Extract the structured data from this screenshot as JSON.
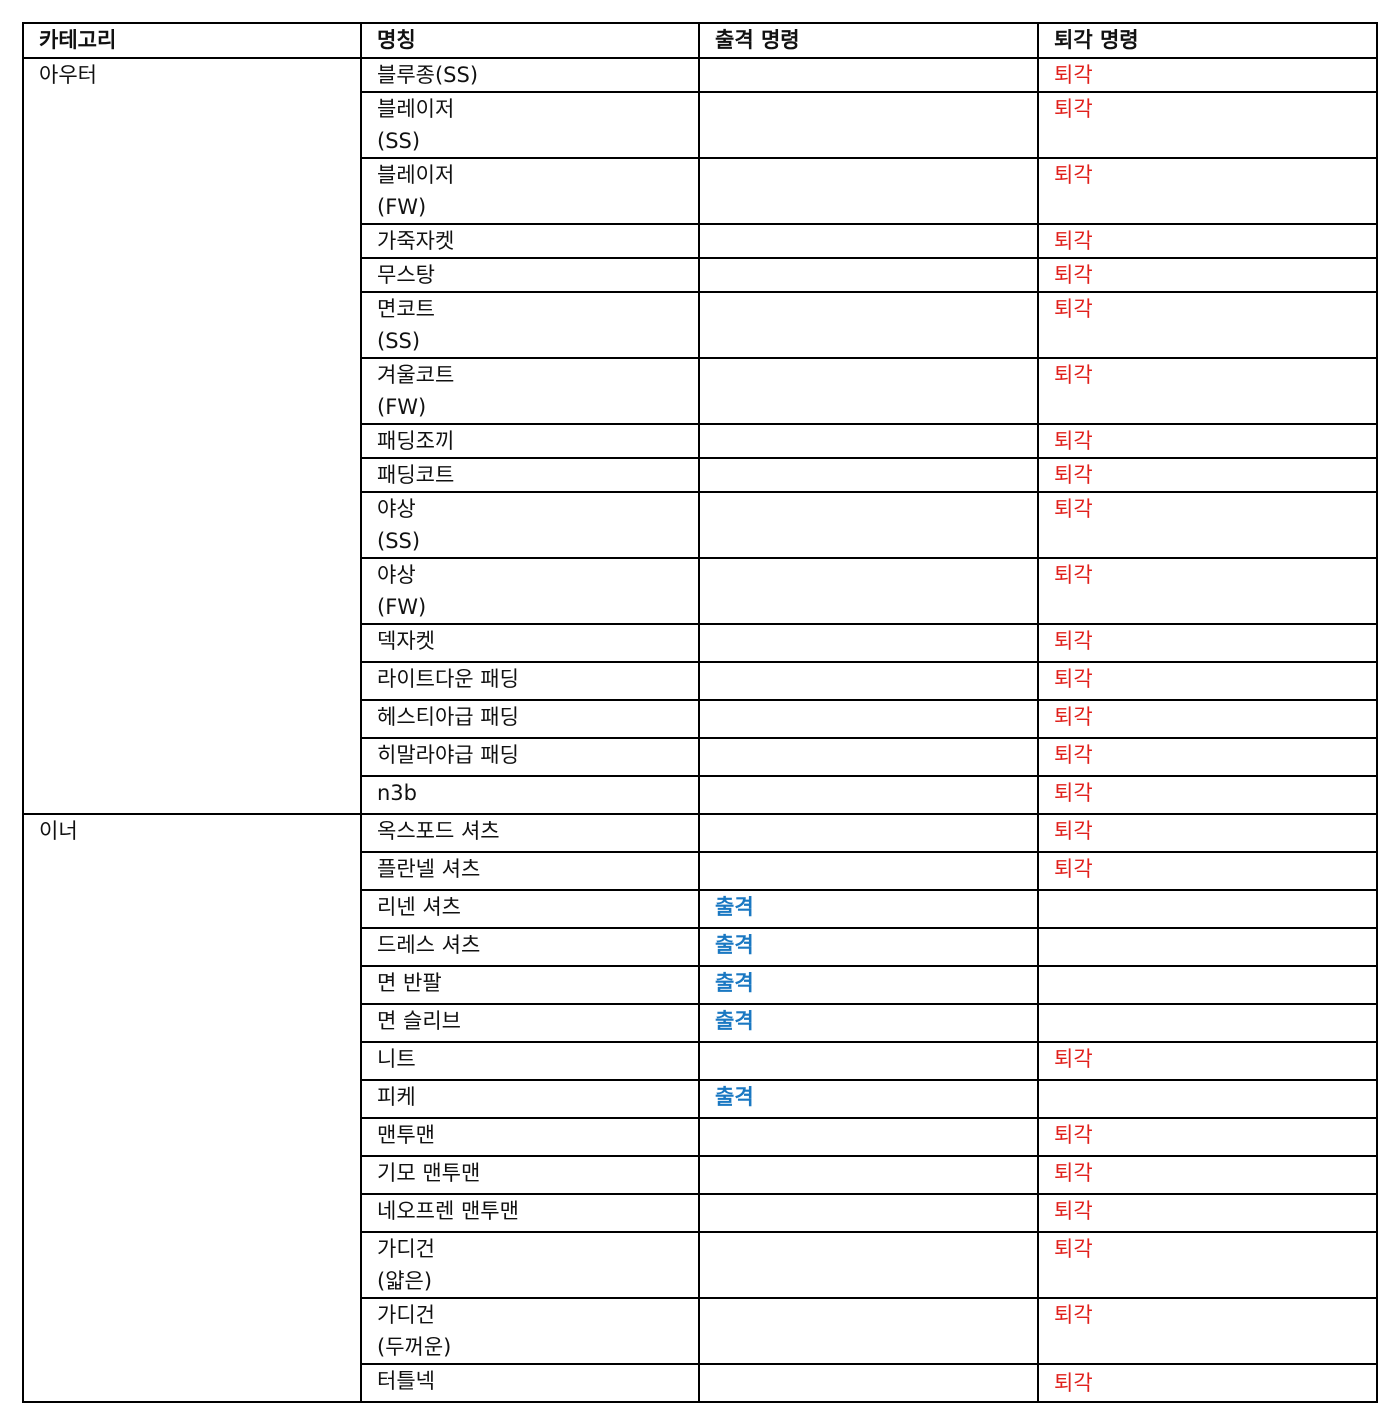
{
  "headers": {
    "category": "카테고리",
    "name": "명칭",
    "deploy": "출격 명령",
    "retire": "퇴각 명령"
  },
  "labels": {
    "deploy": "출격",
    "retire": "퇴각"
  },
  "colors": {
    "deploy": "#1a78c2",
    "retire": "#e0201b",
    "border": "#000000"
  },
  "groups": [
    {
      "category": "아우터",
      "items": [
        {
          "name": [
            "블루종(SS)"
          ],
          "status": "retire"
        },
        {
          "name": [
            "블레이저",
            "(SS)"
          ],
          "status": "retire"
        },
        {
          "name": [
            "블레이저",
            "(FW)"
          ],
          "status": "retire"
        },
        {
          "name": [
            "가죽자켓"
          ],
          "status": "retire"
        },
        {
          "name": [
            "무스탕"
          ],
          "status": "retire"
        },
        {
          "name": [
            "면코트",
            "(SS)"
          ],
          "status": "retire"
        },
        {
          "name": [
            "겨울코트",
            "(FW)"
          ],
          "status": "retire"
        },
        {
          "name": [
            "패딩조끼"
          ],
          "status": "retire"
        },
        {
          "name": [
            "패딩코트"
          ],
          "status": "retire"
        },
        {
          "name": [
            "야상",
            "(SS)"
          ],
          "status": "retire"
        },
        {
          "name": [
            "야상",
            "(FW)"
          ],
          "status": "retire"
        },
        {
          "name": [
            "덱자켓"
          ],
          "status": "retire",
          "mid": true
        },
        {
          "name": [
            "라이트다운 패딩"
          ],
          "status": "retire",
          "mid": true
        },
        {
          "name": [
            "헤스티아급 패딩"
          ],
          "status": "retire",
          "mid": true
        },
        {
          "name": [
            "히말라야급 패딩"
          ],
          "status": "retire",
          "mid": true
        },
        {
          "name": [
            "n3b"
          ],
          "status": "retire",
          "mid": true
        }
      ]
    },
    {
      "category": "이너",
      "items": [
        {
          "name": [
            "옥스포드 셔츠"
          ],
          "status": "retire",
          "mid": true
        },
        {
          "name": [
            "플란넬 셔츠"
          ],
          "status": "retire",
          "mid": true
        },
        {
          "name": [
            "리넨 셔츠"
          ],
          "status": "deploy",
          "mid": true
        },
        {
          "name": [
            "드레스 셔츠"
          ],
          "status": "deploy",
          "mid": true
        },
        {
          "name": [
            "면 반팔"
          ],
          "status": "deploy",
          "mid": true
        },
        {
          "name": [
            "면 슬리브"
          ],
          "status": "deploy",
          "mid": true
        },
        {
          "name": [
            "니트"
          ],
          "status": "retire",
          "mid": true
        },
        {
          "name": [
            "피케"
          ],
          "status": "deploy",
          "mid": true
        },
        {
          "name": [
            "맨투맨"
          ],
          "status": "retire",
          "mid": true
        },
        {
          "name": [
            "기모 맨투맨"
          ],
          "status": "retire",
          "mid": true
        },
        {
          "name": [
            "네오프렌 맨투맨"
          ],
          "status": "retire",
          "mid": true
        },
        {
          "name": [
            "가디건",
            "(얇은)"
          ],
          "status": "retire"
        },
        {
          "name": [
            "가디건",
            "(두꺼운)"
          ],
          "status": "retire"
        },
        {
          "name": [
            "터틀넥"
          ],
          "status": "retire",
          "mid": true,
          "retOffset": true
        }
      ]
    }
  ]
}
